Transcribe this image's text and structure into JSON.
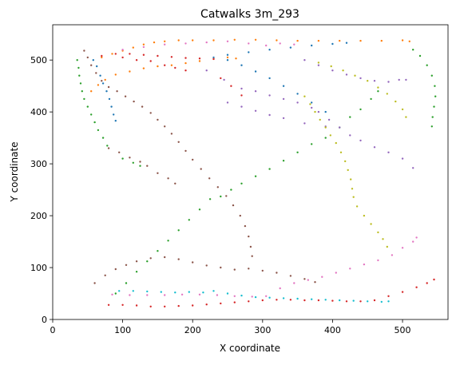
{
  "chart_data": {
    "type": "scatter",
    "title": "Catwalks 3m_293",
    "xlabel": "X coordinate",
    "ylabel": "Y coordinate",
    "xlim": [
      0,
      565
    ],
    "ylim": [
      0,
      568
    ],
    "xticks": [
      0,
      100,
      200,
      300,
      400,
      500
    ],
    "yticks": [
      0,
      100,
      200,
      300,
      400,
      500
    ],
    "grid": false,
    "legend": "none",
    "series": [
      {
        "color": "#1f77b4",
        "points": [
          [
            58,
            500
          ],
          [
            63,
            488
          ],
          [
            68,
            470
          ],
          [
            72,
            455
          ],
          [
            77,
            440
          ],
          [
            81,
            425
          ],
          [
            84,
            410
          ],
          [
            87,
            395
          ],
          [
            90,
            383
          ],
          [
            230,
            505
          ],
          [
            250,
            500
          ],
          [
            270,
            490
          ],
          [
            290,
            478
          ],
          [
            310,
            465
          ],
          [
            330,
            450
          ],
          [
            350,
            435
          ],
          [
            370,
            418
          ],
          [
            390,
            400
          ],
          [
            250,
            510
          ],
          [
            280,
            515
          ],
          [
            310,
            520
          ],
          [
            340,
            524
          ],
          [
            370,
            528
          ],
          [
            400,
            531
          ],
          [
            420,
            533
          ]
        ]
      },
      {
        "color": "#ff7f0e",
        "points": [
          [
            70,
            505
          ],
          [
            85,
            512
          ],
          [
            100,
            518
          ],
          [
            115,
            524
          ],
          [
            130,
            530
          ],
          [
            145,
            534
          ],
          [
            160,
            536
          ],
          [
            180,
            538
          ],
          [
            200,
            538
          ],
          [
            230,
            538
          ],
          [
            260,
            539
          ],
          [
            290,
            539
          ],
          [
            320,
            538
          ],
          [
            350,
            537
          ],
          [
            380,
            537
          ],
          [
            410,
            537
          ],
          [
            440,
            537
          ],
          [
            470,
            537
          ],
          [
            500,
            538
          ],
          [
            510,
            536
          ],
          [
            55,
            440
          ],
          [
            65,
            452
          ],
          [
            75,
            462
          ],
          [
            90,
            472
          ],
          [
            110,
            478
          ],
          [
            130,
            484
          ],
          [
            150,
            488
          ],
          [
            170,
            490
          ],
          [
            190,
            494
          ],
          [
            210,
            498
          ],
          [
            230,
            502
          ],
          [
            250,
            505
          ],
          [
            262,
            503
          ]
        ]
      },
      {
        "color": "#2ca02c",
        "points": [
          [
            35,
            500
          ],
          [
            37,
            485
          ],
          [
            38,
            470
          ],
          [
            40,
            455
          ],
          [
            42,
            440
          ],
          [
            45,
            425
          ],
          [
            50,
            410
          ],
          [
            55,
            395
          ],
          [
            60,
            380
          ],
          [
            65,
            365
          ],
          [
            72,
            350
          ],
          [
            78,
            335
          ],
          [
            90,
            50
          ],
          [
            105,
            70
          ],
          [
            120,
            92
          ],
          [
            135,
            112
          ],
          [
            150,
            132
          ],
          [
            165,
            152
          ],
          [
            180,
            172
          ],
          [
            195,
            192
          ],
          [
            210,
            212
          ],
          [
            225,
            232
          ],
          [
            240,
            237
          ],
          [
            255,
            250
          ],
          [
            270,
            262
          ],
          [
            290,
            276
          ],
          [
            310,
            290
          ],
          [
            330,
            306
          ],
          [
            350,
            322
          ],
          [
            370,
            338
          ],
          [
            390,
            350
          ],
          [
            410,
            370
          ],
          [
            425,
            390
          ],
          [
            440,
            405
          ],
          [
            455,
            425
          ],
          [
            465,
            440
          ],
          [
            515,
            520
          ],
          [
            525,
            508
          ],
          [
            535,
            490
          ],
          [
            542,
            470
          ],
          [
            546,
            450
          ],
          [
            547,
            430
          ],
          [
            545,
            410
          ],
          [
            543,
            390
          ],
          [
            542,
            372
          ],
          [
            100,
            310
          ],
          [
            115,
            302
          ],
          [
            125,
            296
          ]
        ]
      },
      {
        "color": "#d62728",
        "points": [
          [
            80,
            28
          ],
          [
            100,
            28
          ],
          [
            120,
            27
          ],
          [
            140,
            25
          ],
          [
            160,
            25
          ],
          [
            180,
            26
          ],
          [
            200,
            27
          ],
          [
            220,
            29
          ],
          [
            240,
            31
          ],
          [
            260,
            33
          ],
          [
            280,
            35
          ],
          [
            300,
            37
          ],
          [
            320,
            38
          ],
          [
            340,
            38
          ],
          [
            360,
            37
          ],
          [
            380,
            37
          ],
          [
            400,
            36
          ],
          [
            420,
            35
          ],
          [
            440,
            35
          ],
          [
            460,
            37
          ],
          [
            480,
            45
          ],
          [
            500,
            53
          ],
          [
            520,
            62
          ],
          [
            535,
            70
          ],
          [
            545,
            77
          ],
          [
            70,
            508
          ],
          [
            90,
            512
          ],
          [
            110,
            512
          ],
          [
            130,
            510
          ],
          [
            150,
            508
          ],
          [
            170,
            506
          ],
          [
            190,
            504
          ],
          [
            210,
            503
          ],
          [
            230,
            502
          ],
          [
            240,
            465
          ],
          [
            255,
            450
          ],
          [
            270,
            432
          ],
          [
            100,
            505
          ],
          [
            120,
            500
          ],
          [
            140,
            498
          ],
          [
            160,
            490
          ],
          [
            175,
            485
          ],
          [
            190,
            480
          ]
        ]
      },
      {
        "color": "#9467bd",
        "points": [
          [
            220,
            480
          ],
          [
            245,
            462
          ],
          [
            270,
            445
          ],
          [
            290,
            440
          ],
          [
            310,
            432
          ],
          [
            330,
            425
          ],
          [
            350,
            418
          ],
          [
            370,
            408
          ],
          [
            380,
            400
          ],
          [
            395,
            385
          ],
          [
            410,
            370
          ],
          [
            425,
            355
          ],
          [
            440,
            345
          ],
          [
            460,
            332
          ],
          [
            480,
            322
          ],
          [
            500,
            310
          ],
          [
            515,
            292
          ],
          [
            360,
            500
          ],
          [
            380,
            490
          ],
          [
            400,
            480
          ],
          [
            420,
            472
          ],
          [
            440,
            465
          ],
          [
            460,
            460
          ],
          [
            480,
            458
          ],
          [
            495,
            462
          ],
          [
            505,
            462
          ],
          [
            250,
            418
          ],
          [
            270,
            410
          ],
          [
            290,
            402
          ],
          [
            310,
            394
          ],
          [
            330,
            388
          ],
          [
            360,
            378
          ],
          [
            390,
            372
          ]
        ]
      },
      {
        "color": "#8c564b",
        "points": [
          [
            45,
            518
          ],
          [
            50,
            505
          ],
          [
            55,
            490
          ],
          [
            62,
            475
          ],
          [
            70,
            460
          ],
          [
            80,
            448
          ],
          [
            92,
            440
          ],
          [
            104,
            430
          ],
          [
            116,
            420
          ],
          [
            128,
            410
          ],
          [
            140,
            398
          ],
          [
            150,
            385
          ],
          [
            160,
            372
          ],
          [
            170,
            358
          ],
          [
            180,
            342
          ],
          [
            190,
            325
          ],
          [
            200,
            308
          ],
          [
            212,
            290
          ],
          [
            224,
            272
          ],
          [
            236,
            255
          ],
          [
            248,
            238
          ],
          [
            258,
            220
          ],
          [
            268,
            200
          ],
          [
            275,
            180
          ],
          [
            280,
            160
          ],
          [
            283,
            140
          ],
          [
            285,
            122
          ],
          [
            80,
            330
          ],
          [
            95,
            322
          ],
          [
            110,
            312
          ],
          [
            125,
            304
          ],
          [
            135,
            296
          ],
          [
            60,
            70
          ],
          [
            75,
            85
          ],
          [
            90,
            97
          ],
          [
            105,
            105
          ],
          [
            120,
            112
          ],
          [
            140,
            118
          ],
          [
            160,
            120
          ],
          [
            180,
            116
          ],
          [
            200,
            110
          ],
          [
            220,
            104
          ],
          [
            240,
            100
          ],
          [
            260,
            96
          ],
          [
            280,
            98
          ],
          [
            300,
            94
          ],
          [
            320,
            90
          ],
          [
            340,
            84
          ],
          [
            360,
            78
          ],
          [
            375,
            72
          ],
          [
            150,
            282
          ],
          [
            165,
            272
          ],
          [
            175,
            262
          ]
        ]
      },
      {
        "color": "#e377c2",
        "points": [
          [
            85,
            48
          ],
          [
            110,
            47
          ],
          [
            135,
            47
          ],
          [
            160,
            47
          ],
          [
            185,
            48
          ],
          [
            210,
            48
          ],
          [
            235,
            47
          ],
          [
            260,
            45
          ],
          [
            285,
            44
          ],
          [
            305,
            45
          ],
          [
            325,
            60
          ],
          [
            345,
            70
          ],
          [
            365,
            76
          ],
          [
            385,
            82
          ],
          [
            405,
            90
          ],
          [
            425,
            98
          ],
          [
            445,
            106
          ],
          [
            465,
            114
          ],
          [
            485,
            124
          ],
          [
            500,
            138
          ],
          [
            515,
            150
          ],
          [
            520,
            158
          ],
          [
            100,
            520
          ],
          [
            130,
            525
          ],
          [
            160,
            530
          ],
          [
            190,
            532
          ],
          [
            220,
            534
          ],
          [
            250,
            536
          ],
          [
            280,
            532
          ],
          [
            305,
            528
          ],
          [
            325,
            532
          ],
          [
            345,
            530
          ]
        ]
      },
      {
        "color": "#bcbd22",
        "points": [
          [
            360,
            430
          ],
          [
            368,
            415
          ],
          [
            375,
            400
          ],
          [
            382,
            385
          ],
          [
            390,
            370
          ],
          [
            397,
            355
          ],
          [
            405,
            340
          ],
          [
            412,
            322
          ],
          [
            418,
            305
          ],
          [
            422,
            288
          ],
          [
            426,
            270
          ],
          [
            428,
            252
          ],
          [
            430,
            236
          ],
          [
            435,
            218
          ],
          [
            445,
            200
          ],
          [
            455,
            184
          ],
          [
            465,
            168
          ],
          [
            472,
            155
          ],
          [
            478,
            140
          ],
          [
            380,
            495
          ],
          [
            398,
            488
          ],
          [
            415,
            480
          ],
          [
            432,
            470
          ],
          [
            450,
            460
          ],
          [
            465,
            447
          ],
          [
            478,
            435
          ],
          [
            490,
            420
          ],
          [
            500,
            405
          ],
          [
            505,
            390
          ]
        ]
      },
      {
        "color": "#17becf",
        "points": [
          [
            95,
            55
          ],
          [
            115,
            55
          ],
          [
            135,
            54
          ],
          [
            155,
            53
          ],
          [
            175,
            52
          ],
          [
            195,
            53
          ],
          [
            215,
            52
          ],
          [
            230,
            55
          ],
          [
            250,
            50
          ],
          [
            270,
            46
          ],
          [
            290,
            43
          ],
          [
            310,
            42
          ],
          [
            330,
            41
          ],
          [
            350,
            40
          ],
          [
            370,
            39
          ],
          [
            390,
            38
          ],
          [
            410,
            37
          ],
          [
            430,
            36
          ],
          [
            450,
            35
          ],
          [
            470,
            34
          ],
          [
            480,
            35
          ]
        ]
      }
    ]
  }
}
